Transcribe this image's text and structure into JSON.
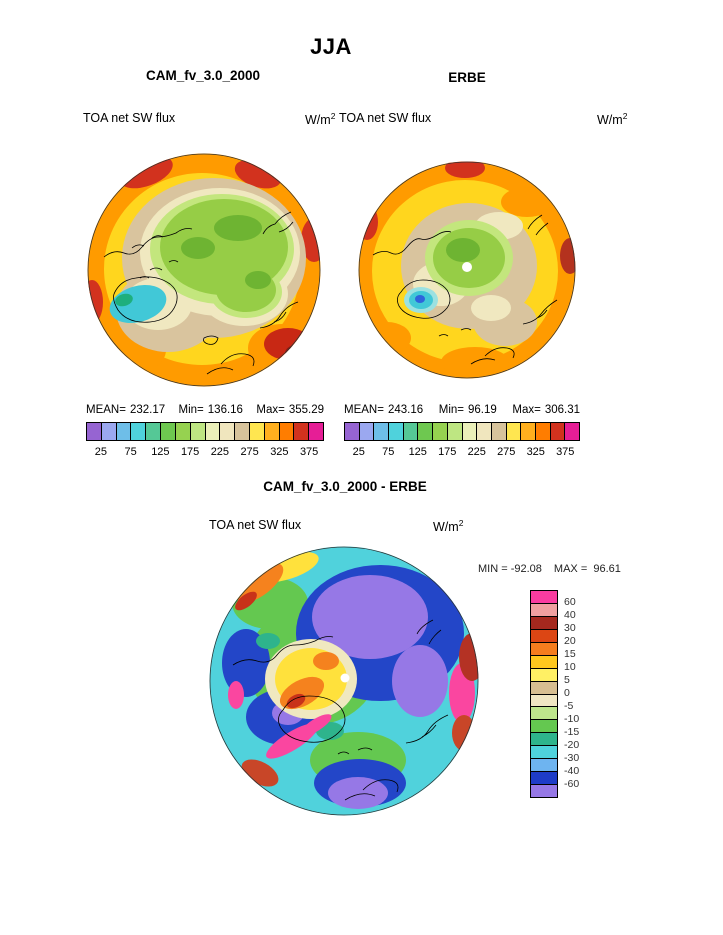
{
  "header": {
    "title": "JJA"
  },
  "panels": [
    {
      "title": "CAM_fv_3.0_2000",
      "field": "TOA net SW flux",
      "units_base": "W/m",
      "units_exp": "2",
      "stats": {
        "mean_label": "MEAN=",
        "mean": "232.17",
        "min_label": "Min=",
        "min": "136.16",
        "max_label": "Max=",
        "max": "355.29"
      },
      "colorbar": {
        "ticks": [
          "25",
          "75",
          "125",
          "175",
          "225",
          "275",
          "325",
          "375"
        ],
        "colors": [
          "#9664D2",
          "#9BA8F0",
          "#6EBEE8",
          "#4FD2DC",
          "#55C896",
          "#6EC850",
          "#96D250",
          "#BEE682",
          "#EBF0B9",
          "#F0E6BE",
          "#D7C39B",
          "#FFE650",
          "#FFAF1E",
          "#FF7D00",
          "#D2321E",
          "#E61E96"
        ]
      }
    },
    {
      "title": "ERBE",
      "field": "TOA net SW flux",
      "units_base": "W/m",
      "units_exp": "2",
      "stats": {
        "mean_label": "MEAN=",
        "mean": "243.16",
        "min_label": "Min=",
        "min": "96.19",
        "max_label": "Max=",
        "max": "306.31"
      },
      "colorbar": {
        "ticks": [
          "25",
          "75",
          "125",
          "175",
          "225",
          "275",
          "325",
          "375"
        ],
        "colors": [
          "#9664D2",
          "#9BA8F0",
          "#6EBEE8",
          "#4FD2DC",
          "#55C896",
          "#6EC850",
          "#96D250",
          "#BEE682",
          "#EBF0B9",
          "#F0E6BE",
          "#D7C39B",
          "#FFE650",
          "#FFAF1E",
          "#FF7D00",
          "#D2321E",
          "#E61E96"
        ]
      }
    }
  ],
  "diff": {
    "title": "CAM_fv_3.0_2000 - ERBE",
    "field": "TOA net SW flux",
    "units_base": "W/m",
    "units_exp": "2",
    "min_label": "MIN =",
    "min_value": "-92.08",
    "max_label": "MAX =",
    "max_value": "96.61",
    "colorbar": {
      "labels": [
        "60",
        "40",
        "30",
        "20",
        "15",
        "10",
        "5",
        "0",
        "-5",
        "-10",
        "-15",
        "-20",
        "-30",
        "-40",
        "-60"
      ],
      "colors": [
        "#FA3CA0",
        "#F0A0A0",
        "#A5281E",
        "#DC4614",
        "#F57D1E",
        "#FFC81E",
        "#FFF064",
        "#D7BE91",
        "#F0E6C3",
        "#BEE68C",
        "#64C850",
        "#2EB48C",
        "#4FD2DC",
        "#6EB4F0",
        "#1E3CC8",
        "#9678E6"
      ]
    }
  },
  "chart_data": [
    {
      "type": "heatmap",
      "subtype": "filled-contour polar stereographic map (north pole)",
      "title": "CAM_fv_3.0_2000",
      "season": "JJA",
      "variable": "TOA net SW flux",
      "units": "W/m2",
      "stats": {
        "mean": 232.17,
        "min": 136.16,
        "max": 355.29
      },
      "contour_levels": [
        25,
        75,
        125,
        175,
        225,
        275,
        325,
        375
      ],
      "level_step": 25,
      "legend_position": "bottom"
    },
    {
      "type": "heatmap",
      "subtype": "filled-contour polar stereographic map (north pole)",
      "title": "ERBE",
      "season": "JJA",
      "variable": "TOA net SW flux",
      "units": "W/m2",
      "stats": {
        "mean": 243.16,
        "min": 96.19,
        "max": 306.31
      },
      "contour_levels": [
        25,
        75,
        125,
        175,
        225,
        275,
        325,
        375
      ],
      "level_step": 25,
      "legend_position": "bottom"
    },
    {
      "type": "heatmap",
      "subtype": "filled-contour difference map, polar stereographic (north pole)",
      "title": "CAM_fv_3.0_2000 - ERBE",
      "season": "JJA",
      "variable": "TOA net SW flux",
      "units": "W/m2",
      "stats": {
        "min": -92.08,
        "max": 96.61
      },
      "contour_levels": [
        60,
        40,
        30,
        20,
        15,
        10,
        5,
        0,
        -5,
        -10,
        -15,
        -20,
        -30,
        -40,
        -60
      ],
      "legend_position": "right"
    }
  ]
}
